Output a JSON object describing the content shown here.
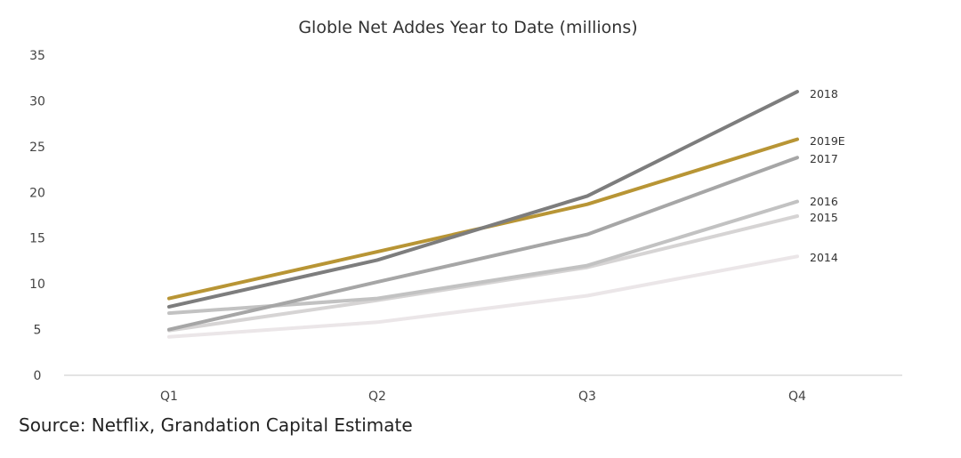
{
  "chart_data": {
    "type": "line",
    "title": "Globle Net Addes Year to Date (millions)",
    "categories": [
      "Q1",
      "Q2",
      "Q3",
      "Q4"
    ],
    "ylim": [
      0,
      35
    ],
    "yticks": [
      "0",
      "5",
      "10",
      "15",
      "20",
      "25",
      "30",
      "35"
    ],
    "grid": false,
    "series": [
      {
        "name": "2014",
        "values": [
          4.2,
          5.8,
          8.7,
          13.0
        ],
        "color": "#ebe6e8"
      },
      {
        "name": "2015",
        "values": [
          4.9,
          8.2,
          11.8,
          17.4
        ],
        "color": "#d6d4d4"
      },
      {
        "name": "2016",
        "values": [
          6.8,
          8.4,
          12.0,
          19.0
        ],
        "color": "#c2c2c2"
      },
      {
        "name": "2017",
        "values": [
          5.0,
          10.2,
          15.4,
          23.8
        ],
        "color": "#a6a6a6"
      },
      {
        "name": "2019E",
        "values": [
          8.4,
          13.5,
          18.7,
          25.8
        ],
        "color": "#b89535"
      },
      {
        "name": "2018",
        "values": [
          7.5,
          12.6,
          19.6,
          31.0
        ],
        "color": "#7d7d7d"
      }
    ]
  },
  "source": "Source: Netflix, Grandation Capital Estimate"
}
